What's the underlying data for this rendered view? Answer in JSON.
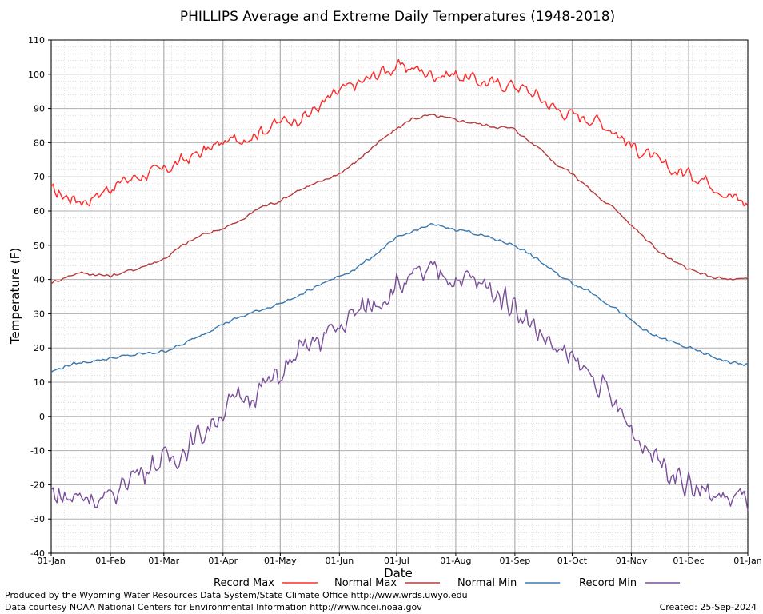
{
  "chart_data": {
    "type": "line",
    "title": "PHILLIPS Average and Extreme Daily Temperatures (1948-2018)",
    "xlabel": "Date",
    "ylabel": "Temperature (F)",
    "ylim": [
      -40,
      110
    ],
    "y_ticks": [
      "110",
      "100",
      "90",
      "80",
      "70",
      "60",
      "50",
      "40",
      "30",
      "20",
      "10",
      "0",
      "-10",
      "-20",
      "-30",
      "-40"
    ],
    "x_ticks": [
      "01-Jan",
      "01-Feb",
      "01-Mar",
      "01-Apr",
      "01-May",
      "01-Jun",
      "01-Jul",
      "01-Aug",
      "01-Sep",
      "01-Oct",
      "01-Nov",
      "01-Dec",
      "01-Jan"
    ],
    "x_tick_days": [
      1,
      32,
      60,
      91,
      121,
      152,
      182,
      213,
      244,
      274,
      305,
      335,
      366
    ],
    "grid": true,
    "legend_position": "bottom",
    "series": [
      {
        "name": "Record Max",
        "color": "#ff2a2a",
        "anchors": [
          [
            1,
            66
          ],
          [
            10,
            64
          ],
          [
            20,
            63
          ],
          [
            32,
            67
          ],
          [
            45,
            70
          ],
          [
            60,
            72
          ],
          [
            75,
            76
          ],
          [
            91,
            80
          ],
          [
            105,
            82
          ],
          [
            121,
            86
          ],
          [
            135,
            88
          ],
          [
            152,
            95
          ],
          [
            165,
            98
          ],
          [
            175,
            101
          ],
          [
            182,
            102
          ],
          [
            190,
            102
          ],
          [
            200,
            100
          ],
          [
            213,
            100
          ],
          [
            225,
            98
          ],
          [
            235,
            97
          ],
          [
            244,
            97
          ],
          [
            255,
            94
          ],
          [
            265,
            90
          ],
          [
            274,
            88
          ],
          [
            285,
            87
          ],
          [
            295,
            84
          ],
          [
            305,
            79
          ],
          [
            315,
            76
          ],
          [
            325,
            72
          ],
          [
            335,
            71
          ],
          [
            345,
            69
          ],
          [
            355,
            65
          ],
          [
            366,
            62
          ]
        ],
        "noise": 2.6
      },
      {
        "name": "Normal Max",
        "color": "#b83c3c",
        "anchors": [
          [
            1,
            39
          ],
          [
            15,
            42
          ],
          [
            32,
            41
          ],
          [
            45,
            43
          ],
          [
            60,
            46
          ],
          [
            70,
            50
          ],
          [
            80,
            53
          ],
          [
            91,
            55
          ],
          [
            100,
            57
          ],
          [
            110,
            61
          ],
          [
            121,
            63
          ],
          [
            130,
            66
          ],
          [
            140,
            68
          ],
          [
            152,
            71
          ],
          [
            160,
            74
          ],
          [
            170,
            79
          ],
          [
            182,
            84
          ],
          [
            190,
            87
          ],
          [
            200,
            88
          ],
          [
            210,
            87
          ],
          [
            220,
            86
          ],
          [
            230,
            85
          ],
          [
            244,
            84
          ],
          [
            250,
            81
          ],
          [
            258,
            78
          ],
          [
            265,
            74
          ],
          [
            274,
            71
          ],
          [
            282,
            67
          ],
          [
            290,
            63
          ],
          [
            298,
            60
          ],
          [
            305,
            56
          ],
          [
            312,
            52
          ],
          [
            320,
            48
          ],
          [
            328,
            45
          ],
          [
            335,
            43
          ],
          [
            345,
            41
          ],
          [
            355,
            40
          ],
          [
            366,
            40
          ]
        ],
        "noise": 0.6
      },
      {
        "name": "Normal Min",
        "color": "#3a78b0",
        "anchors": [
          [
            1,
            13
          ],
          [
            10,
            15
          ],
          [
            20,
            16
          ],
          [
            32,
            17
          ],
          [
            45,
            18
          ],
          [
            60,
            19
          ],
          [
            70,
            21
          ],
          [
            80,
            24
          ],
          [
            91,
            27
          ],
          [
            100,
            29
          ],
          [
            110,
            31
          ],
          [
            121,
            33
          ],
          [
            130,
            35
          ],
          [
            140,
            38
          ],
          [
            152,
            41
          ],
          [
            160,
            43
          ],
          [
            170,
            47
          ],
          [
            182,
            52
          ],
          [
            190,
            54
          ],
          [
            200,
            56
          ],
          [
            210,
            55
          ],
          [
            220,
            54
          ],
          [
            232,
            52
          ],
          [
            244,
            50
          ],
          [
            250,
            48
          ],
          [
            258,
            45
          ],
          [
            265,
            42
          ],
          [
            274,
            39
          ],
          [
            282,
            37
          ],
          [
            290,
            34
          ],
          [
            298,
            31
          ],
          [
            305,
            28
          ],
          [
            315,
            24
          ],
          [
            325,
            22
          ],
          [
            335,
            20
          ],
          [
            345,
            18
          ],
          [
            355,
            16
          ],
          [
            366,
            15
          ]
        ],
        "noise": 0.6
      },
      {
        "name": "Record Min",
        "color": "#7a4f9a",
        "anchors": [
          [
            1,
            -22
          ],
          [
            10,
            -24
          ],
          [
            20,
            -23
          ],
          [
            32,
            -25
          ],
          [
            40,
            -18
          ],
          [
            50,
            -15
          ],
          [
            60,
            -13
          ],
          [
            70,
            -10
          ],
          [
            80,
            -5
          ],
          [
            91,
            2
          ],
          [
            100,
            5
          ],
          [
            110,
            8
          ],
          [
            121,
            12
          ],
          [
            130,
            18
          ],
          [
            140,
            22
          ],
          [
            152,
            26
          ],
          [
            160,
            30
          ],
          [
            170,
            33
          ],
          [
            182,
            38
          ],
          [
            190,
            40
          ],
          [
            200,
            42
          ],
          [
            210,
            41
          ],
          [
            220,
            40
          ],
          [
            230,
            37
          ],
          [
            244,
            33
          ],
          [
            250,
            28
          ],
          [
            258,
            24
          ],
          [
            265,
            20
          ],
          [
            274,
            16
          ],
          [
            282,
            13
          ],
          [
            290,
            8
          ],
          [
            298,
            2
          ],
          [
            305,
            -4
          ],
          [
            315,
            -10
          ],
          [
            325,
            -15
          ],
          [
            335,
            -20
          ],
          [
            345,
            -23
          ],
          [
            355,
            -24
          ],
          [
            366,
            -24
          ]
        ],
        "noise": 5.0
      }
    ]
  },
  "footer": {
    "produced_by": "Produced by the Wyoming Water Resources Data System/State Climate Office http://www.wrds.uwyo.edu",
    "courtesy": "Data courtesy NOAA National Centers for Environmental Information http://www.ncei.noaa.gov",
    "created": "Created:  25-Sep-2024"
  }
}
